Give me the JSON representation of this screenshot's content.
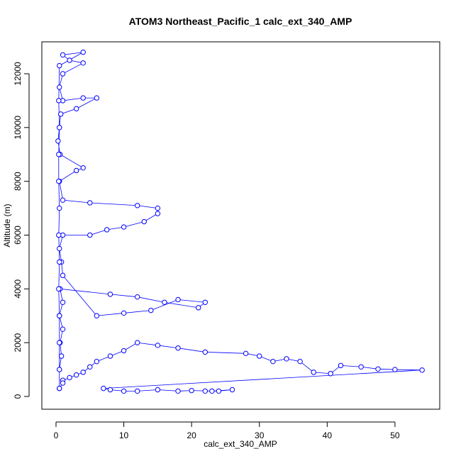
{
  "chart_data": {
    "type": "line",
    "title": "ATOM3 Northeast_Pacific_1 calc_ext_340_AMP",
    "x_label": "calc_ext_340_AMP",
    "y_label": "Altitude (m)",
    "color": "#0000ff",
    "marker": "circle",
    "x": [
      22,
      24,
      26,
      23,
      20,
      18,
      15,
      12,
      10,
      8,
      7,
      54,
      50,
      47.5,
      45,
      42,
      40.5,
      38,
      36,
      34,
      32,
      30,
      28,
      22,
      18,
      15,
      12,
      10,
      8,
      6,
      5,
      4,
      3,
      2,
      1,
      1,
      0.5,
      0.5,
      0.8,
      0.6,
      1,
      0.5,
      1,
      0.6,
      8,
      12,
      16,
      21,
      22,
      18,
      14,
      10,
      6,
      1,
      0.8,
      0.5,
      1,
      5,
      7.5,
      10,
      13,
      15,
      15,
      12,
      5,
      1,
      0.5,
      3,
      4,
      0.6,
      0.3,
      0.5,
      0.7,
      3,
      6,
      4,
      1,
      0.5,
      1,
      4,
      2,
      1,
      4,
      0.5,
      0.4,
      0.5,
      0.4,
      0.4,
      0.5,
      0.4,
      0.5,
      0.4,
      0.5,
      0.5,
      0.5,
      0.5
    ],
    "values": [
      200,
      200,
      250,
      200,
      220,
      200,
      250,
      200,
      200,
      250,
      300,
      980,
      1000,
      1020,
      1100,
      1150,
      850,
      900,
      1300,
      1400,
      1300,
      1500,
      1600,
      1650,
      1800,
      1900,
      2000,
      1700,
      1500,
      1300,
      1100,
      900,
      800,
      700,
      600,
      500,
      300,
      1000,
      1500,
      2000,
      2500,
      3000,
      3500,
      4000,
      3800,
      3700,
      3500,
      3300,
      3500,
      3600,
      3200,
      3100,
      3000,
      4500,
      5000,
      5500,
      6000,
      6000,
      6200,
      6300,
      6500,
      6800,
      7000,
      7100,
      7200,
      7300,
      8000,
      8400,
      8500,
      9000,
      9500,
      10000,
      10500,
      10700,
      11100,
      11100,
      11000,
      11500,
      12000,
      12400,
      12500,
      12700,
      12800,
      12300,
      11000,
      10000,
      9000,
      8000,
      7000,
      6000,
      5000,
      4000,
      3000,
      2000,
      1000,
      300
    ],
    "xlim": [
      -2.09,
      56.6
    ],
    "ylim": [
      -475,
      13186
    ],
    "xticks": [
      0,
      10,
      20,
      30,
      40,
      50
    ],
    "yticks": [
      0,
      2000,
      4000,
      6000,
      8000,
      10000,
      12000
    ]
  }
}
